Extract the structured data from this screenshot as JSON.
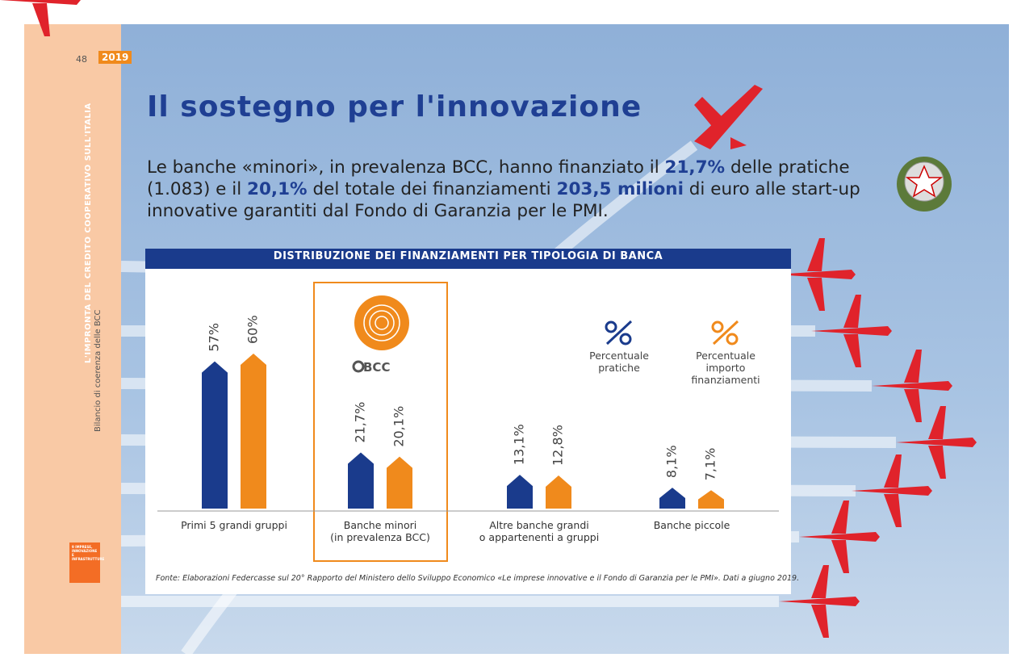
{
  "page": {
    "number": "48",
    "year": "2019",
    "side_title": "L'IMPRONTA DEL CREDITO COOPERATIVO SULL'ITALIA",
    "side_subtitle": "Bilancio di coerenza delle BCC",
    "sdg": "9 IMPRESE, INNOVAZIONE E INFRASTRUTTURE"
  },
  "title": "Il sostegno per l'innovazione",
  "lead": [
    {
      "text": "Le banche «minori», in prevalenza BCC, hanno finanziato il ",
      "bold": false
    },
    {
      "text": "21,7%",
      "bold": true
    },
    {
      "text": " delle pratiche (1.083) e il ",
      "bold": false
    },
    {
      "text": "20,1%",
      "bold": true
    },
    {
      "text": " del totale dei finanziamenti ",
      "bold": false
    },
    {
      "text": "203,5 milioni",
      "bold": true
    },
    {
      "text": " di euro alle start-up innovative garantiti dal Fondo di Garanzia per le PMI.",
      "bold": false
    }
  ],
  "logo": "BCC",
  "chart_data": {
    "type": "bar",
    "title": "DISTRIBUZIONE DEI FINANZIAMENTI PER TIPOLOGIA DI BANCA",
    "categories": [
      [
        "Primi 5 grandi gruppi"
      ],
      [
        "Banche minori",
        "(in prevalenza BCC)"
      ],
      [
        "Altre banche grandi",
        "o appartenenti a gruppi"
      ],
      [
        "Banche piccole"
      ]
    ],
    "series": [
      {
        "name": "Percentuale pratiche",
        "color": "#1a3b8c",
        "values": [
          57,
          21.7,
          13.1,
          8.1
        ],
        "value_labels": [
          "57%",
          "21,7%",
          "13,1%",
          "8,1%"
        ]
      },
      {
        "name": "Percentuale importo finanziamenti",
        "color": "#f08a1c",
        "values": [
          60,
          20.1,
          12.8,
          7.1
        ],
        "value_labels": [
          "60%",
          "20,1%",
          "12,8%",
          "7,1%"
        ]
      }
    ],
    "source": "Fonte: Elaborazioni Federcasse sul 20° Rapporto del Ministero dello Sviluppo Economico «Le imprese innovative e il Fondo di Garanzia per le PMI». Dati a giugno 2019."
  }
}
